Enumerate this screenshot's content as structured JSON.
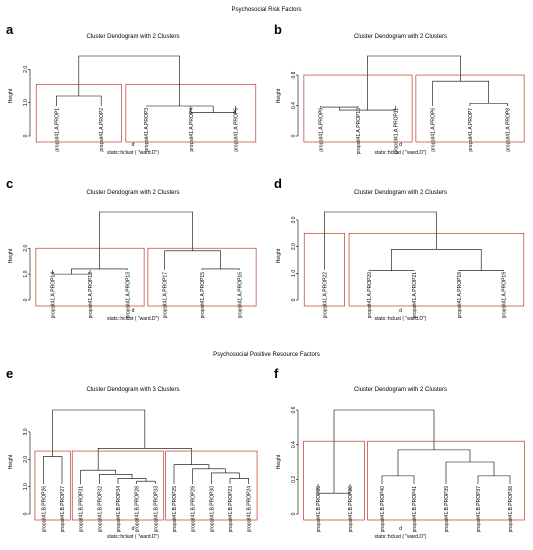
{
  "page": {
    "section_titles": [
      "Psychosocial Risk Factors",
      "Psychosocial Positive Resource Factors"
    ]
  },
  "colors": {
    "tree": "#000000",
    "rect": "#c0392b"
  },
  "chart_data": [
    {
      "type": "dendrogram",
      "letter": "a",
      "title": "Cluster Dendogram with 2 Clusters",
      "ylabel": "Height",
      "xlabel": "d",
      "xlabel2": "stats::hclust (  \"ward.D\")",
      "ylim": [
        0,
        2.0
      ],
      "yticks": [
        0,
        1.0,
        2.0
      ],
      "grid": false,
      "leaves": [
        "propsit41.A.PROP1",
        "propsit41.A.PROP2",
        "propsit41.A.PROP3",
        "propsit41.A.PROP4",
        "propsit41.A.PROP5"
      ],
      "merges": [
        [
          0,
          1,
          1.2
        ],
        [
          3,
          4,
          0.7
        ],
        [
          2,
          6,
          0.9
        ],
        [
          5,
          7,
          2.4
        ]
      ],
      "clusters": [
        [
          0,
          1
        ],
        [
          2,
          4
        ]
      ],
      "cut_height": 1.55
    },
    {
      "type": "dendrogram",
      "letter": "b",
      "title": "Cluster Dendogram with 2 Clusters",
      "ylabel": "Height",
      "xlabel": "d",
      "xlabel2": "stats::hclust (  \"ward.D\")",
      "ylim": [
        0,
        0.8
      ],
      "yticks": [
        0,
        0.4,
        0.8
      ],
      "grid": false,
      "leaves": [
        "propsit41.A.PROP9",
        "propsit41.A.PROP10",
        "propsit41.A.PROP11",
        "propsit41.A.PROP6",
        "propsit41.A.PROP7",
        "propsit41.A.PROP8"
      ],
      "merges": [
        [
          0,
          1,
          0.38
        ],
        [
          2,
          6,
          0.34
        ],
        [
          4,
          5,
          0.43
        ],
        [
          3,
          8,
          0.72
        ],
        [
          7,
          9,
          1.05
        ]
      ],
      "clusters": [
        [
          0,
          2
        ],
        [
          3,
          5
        ]
      ],
      "cut_height": 0.8
    },
    {
      "type": "dendrogram",
      "letter": "c",
      "title": "Cluster Dendogram with 2 Clusters",
      "ylabel": "Height",
      "xlabel": "d",
      "xlabel2": "stats::hclust (  \"ward.D\")",
      "ylim": [
        0,
        2.0
      ],
      "yticks": [
        0,
        1.0,
        2.0
      ],
      "grid": false,
      "leaves": [
        "propsit41.A.PROP14",
        "propsit41.A.PROP12",
        "propsit41.A.PROP13",
        "propsit41.A.PROP17",
        "propsit41.A.PROP15",
        "propsit41.A.PROP16"
      ],
      "merges": [
        [
          0,
          1,
          1.0
        ],
        [
          2,
          6,
          1.2
        ],
        [
          4,
          5,
          1.2
        ],
        [
          3,
          8,
          1.9
        ],
        [
          7,
          9,
          3.4
        ]
      ],
      "clusters": [
        [
          0,
          2
        ],
        [
          3,
          5
        ]
      ],
      "cut_height": 2.0
    },
    {
      "type": "dendrogram",
      "letter": "d",
      "title": "Cluster Dendogram with 2 Clusters",
      "ylabel": "Height",
      "xlabel": "d",
      "xlabel2": "stats::hclust (  \"ward.D\")",
      "ylim": [
        0,
        3.0
      ],
      "yticks": [
        0,
        1.0,
        2.0,
        3.0
      ],
      "grid": false,
      "leaves": [
        "propsit41.A.PROP22",
        "propsit41.A.PROP20",
        "propsit41.A.PROP21",
        "propsit41.A.PROP18",
        "propsit41.A.PROP19"
      ],
      "merges": [
        [
          1,
          2,
          1.1
        ],
        [
          3,
          4,
          1.1
        ],
        [
          5,
          6,
          1.9
        ],
        [
          0,
          7,
          3.3
        ]
      ],
      "clusters": [
        [
          0,
          0
        ],
        [
          1,
          4
        ]
      ],
      "cut_height": 2.5
    },
    {
      "type": "dendrogram",
      "letter": "e",
      "title": "Cluster Dendogram with 3 Clusters",
      "ylabel": "Height",
      "xlabel": "d",
      "xlabel2": "stats::hclust (  \"ward.D\")",
      "ylim": [
        0,
        3.0
      ],
      "yticks": [
        0,
        1.0,
        2.0,
        3.0
      ],
      "grid": false,
      "leaves": [
        "propsit41.B.PROP26",
        "propsit41.B.PROP27",
        "propsit41.B.PROP31",
        "propsit41.B.PROP32",
        "propsit41.B.PROP34",
        "propsit41.B.PROP28",
        "propsit41.B.PROP33",
        "propsit41.B.PROP25",
        "propsit41.B.PROP29",
        "propsit41.B.PROP30",
        "propsit41.B.PROP23",
        "propsit41.B.PROP24"
      ],
      "merges": [
        [
          0,
          1,
          2.1
        ],
        [
          5,
          6,
          1.2
        ],
        [
          4,
          13,
          1.3
        ],
        [
          3,
          14,
          1.45
        ],
        [
          2,
          15,
          1.6
        ],
        [
          10,
          11,
          1.3
        ],
        [
          9,
          17,
          1.5
        ],
        [
          8,
          18,
          1.65
        ],
        [
          7,
          19,
          1.8
        ],
        [
          16,
          20,
          2.4
        ],
        [
          12,
          21,
          3.8
        ]
      ],
      "clusters": [
        [
          0,
          1
        ],
        [
          2,
          6
        ],
        [
          7,
          11
        ]
      ],
      "cut_height": 2.3
    },
    {
      "type": "dendrogram",
      "letter": "f",
      "title": "Cluster Dendogram with 2 Clusters",
      "ylabel": "Height",
      "xlabel": "d",
      "xlabel2": "stats::hclust (  \"ward.D\")",
      "ylim": [
        0,
        0.6
      ],
      "yticks": [
        0,
        0.2,
        0.4,
        0.6
      ],
      "grid": false,
      "leaves": [
        "propsit41.B.PROP35",
        "propsit41.B.PROP36",
        "propsit41.B.PROP40",
        "propsit41.B.PROP41",
        "propsit41.B.PROP39",
        "propsit41.B.PROP37",
        "propsit41.B.PROP38"
      ],
      "merges": [
        [
          0,
          1,
          0.12
        ],
        [
          2,
          3,
          0.22
        ],
        [
          5,
          6,
          0.22
        ],
        [
          4,
          9,
          0.3
        ],
        [
          8,
          10,
          0.37
        ],
        [
          7,
          11,
          0.6
        ]
      ],
      "clusters": [
        [
          0,
          1
        ],
        [
          2,
          6
        ]
      ],
      "cut_height": 0.42
    }
  ]
}
